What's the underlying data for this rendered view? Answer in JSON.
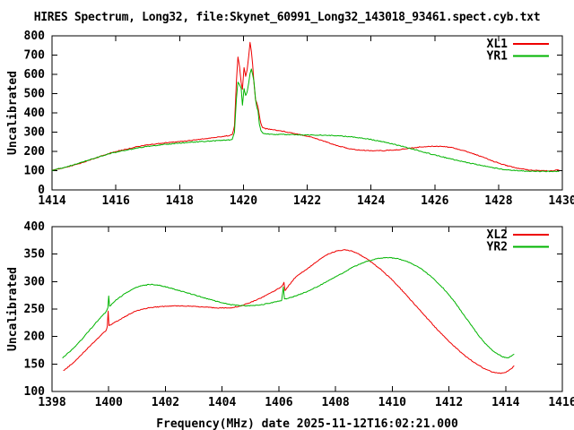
{
  "title": "HIRES Spectrum, Long32, file:Skynet_60991_Long32_143018_93461.spect.cyb.txt",
  "colors": {
    "background": "#ffffff",
    "foreground": "#000000",
    "red_series": "#ee0000",
    "green_series": "#00b400"
  },
  "chart_data": [
    {
      "type": "line",
      "plot_id": "top",
      "title": "",
      "xlabel": "",
      "ylabel": "Uncalibrated",
      "xlim": [
        1414,
        1430
      ],
      "ylim": [
        0,
        800
      ],
      "xticks": [
        1414,
        1416,
        1418,
        1420,
        1422,
        1424,
        1426,
        1428,
        1430
      ],
      "yticks": [
        0,
        100,
        200,
        300,
        400,
        500,
        600,
        700,
        800
      ],
      "grid": false,
      "legend_position": "top-right-inside",
      "series": [
        {
          "name": "XL1",
          "color": "#ee0000",
          "points": [
            [
              1414.0,
              101
            ],
            [
              1414.3,
              111
            ],
            [
              1414.6,
              124
            ],
            [
              1414.9,
              139
            ],
            [
              1415.2,
              156
            ],
            [
              1415.5,
              173
            ],
            [
              1415.8,
              190
            ],
            [
              1416.1,
              203
            ],
            [
              1416.4,
              214
            ],
            [
              1416.7,
              226
            ],
            [
              1417.0,
              234
            ],
            [
              1417.3,
              240
            ],
            [
              1417.6,
              245
            ],
            [
              1418.0,
              251
            ],
            [
              1418.4,
              258
            ],
            [
              1418.8,
              266
            ],
            [
              1419.2,
              274
            ],
            [
              1419.5,
              281
            ],
            [
              1419.65,
              286
            ],
            [
              1419.72,
              330
            ],
            [
              1419.78,
              565
            ],
            [
              1419.83,
              690
            ],
            [
              1419.88,
              638
            ],
            [
              1419.93,
              558
            ],
            [
              1419.97,
              522
            ],
            [
              1420.02,
              635
            ],
            [
              1420.07,
              590
            ],
            [
              1420.12,
              625
            ],
            [
              1420.17,
              700
            ],
            [
              1420.21,
              765
            ],
            [
              1420.25,
              718
            ],
            [
              1420.29,
              650
            ],
            [
              1420.33,
              558
            ],
            [
              1420.38,
              470
            ],
            [
              1420.42,
              452
            ],
            [
              1420.46,
              428
            ],
            [
              1420.5,
              385
            ],
            [
              1420.55,
              345
            ],
            [
              1420.6,
              325
            ],
            [
              1420.7,
              318
            ],
            [
              1420.85,
              315
            ],
            [
              1421.0,
              311
            ],
            [
              1421.4,
              300
            ],
            [
              1421.8,
              287
            ],
            [
              1422.2,
              271
            ],
            [
              1422.6,
              249
            ],
            [
              1423.0,
              227
            ],
            [
              1423.4,
              211
            ],
            [
              1423.7,
              206
            ],
            [
              1424.0,
              204
            ],
            [
              1424.4,
              204
            ],
            [
              1424.8,
              208
            ],
            [
              1425.2,
              216
            ],
            [
              1425.6,
              224
            ],
            [
              1426.0,
              227
            ],
            [
              1426.3,
              226
            ],
            [
              1426.6,
              218
            ],
            [
              1427.0,
              199
            ],
            [
              1427.4,
              177
            ],
            [
              1427.8,
              151
            ],
            [
              1428.2,
              129
            ],
            [
              1428.6,
              112
            ],
            [
              1429.0,
              103
            ],
            [
              1429.4,
              100
            ],
            [
              1429.7,
              99
            ],
            [
              1429.9,
              104
            ]
          ]
        },
        {
          "name": "YR1",
          "color": "#00b400",
          "points": [
            [
              1414.0,
              102
            ],
            [
              1414.3,
              113
            ],
            [
              1414.6,
              127
            ],
            [
              1414.9,
              142
            ],
            [
              1415.2,
              158
            ],
            [
              1415.5,
              174
            ],
            [
              1415.8,
              188
            ],
            [
              1416.1,
              199
            ],
            [
              1416.4,
              209
            ],
            [
              1416.7,
              218
            ],
            [
              1417.0,
              226
            ],
            [
              1417.3,
              232
            ],
            [
              1417.6,
              237
            ],
            [
              1418.0,
              243
            ],
            [
              1418.4,
              248
            ],
            [
              1418.8,
              252
            ],
            [
              1419.2,
              256
            ],
            [
              1419.5,
              259
            ],
            [
              1419.65,
              261
            ],
            [
              1419.72,
              300
            ],
            [
              1419.78,
              470
            ],
            [
              1419.83,
              560
            ],
            [
              1419.88,
              545
            ],
            [
              1419.93,
              528
            ],
            [
              1419.97,
              440
            ],
            [
              1420.02,
              525
            ],
            [
              1420.07,
              490
            ],
            [
              1420.12,
              510
            ],
            [
              1420.17,
              560
            ],
            [
              1420.21,
              605
            ],
            [
              1420.25,
              628
            ],
            [
              1420.29,
              600
            ],
            [
              1420.33,
              565
            ],
            [
              1420.38,
              470
            ],
            [
              1420.42,
              430
            ],
            [
              1420.46,
              408
            ],
            [
              1420.5,
              340
            ],
            [
              1420.55,
              310
            ],
            [
              1420.6,
              297
            ],
            [
              1420.7,
              291
            ],
            [
              1420.85,
              289
            ],
            [
              1421.0,
              288
            ],
            [
              1421.5,
              287
            ],
            [
              1422.0,
              285
            ],
            [
              1422.5,
              284
            ],
            [
              1423.0,
              281
            ],
            [
              1423.5,
              274
            ],
            [
              1424.0,
              262
            ],
            [
              1424.4,
              249
            ],
            [
              1424.8,
              234
            ],
            [
              1425.2,
              217
            ],
            [
              1425.6,
              199
            ],
            [
              1426.0,
              181
            ],
            [
              1426.5,
              161
            ],
            [
              1427.0,
              142
            ],
            [
              1427.4,
              129
            ],
            [
              1427.8,
              116
            ],
            [
              1428.2,
              105
            ],
            [
              1428.6,
              100
            ],
            [
              1429.0,
              97
            ],
            [
              1429.4,
              96
            ],
            [
              1429.9,
              97
            ]
          ]
        }
      ]
    },
    {
      "type": "line",
      "plot_id": "bottom",
      "title": "",
      "xlabel": "Frequency(MHz) date 2025-11-12T16:02:21.000",
      "ylabel": "Uncalibrated",
      "xlim": [
        1398,
        1416
      ],
      "ylim": [
        100,
        400
      ],
      "xticks": [
        1398,
        1400,
        1402,
        1404,
        1406,
        1408,
        1410,
        1412,
        1414,
        1416
      ],
      "yticks": [
        100,
        150,
        200,
        250,
        300,
        350,
        400
      ],
      "grid": false,
      "legend_position": "top-right-inside",
      "series": [
        {
          "name": "XL2",
          "color": "#ee0000",
          "points": [
            [
              1398.4,
              138
            ],
            [
              1398.7,
              150
            ],
            [
              1399.0,
              165
            ],
            [
              1399.3,
              181
            ],
            [
              1399.6,
              196
            ],
            [
              1399.9,
              211
            ],
            [
              1399.95,
              218
            ],
            [
              1399.98,
              247
            ],
            [
              1400.01,
              220
            ],
            [
              1400.3,
              228
            ],
            [
              1400.6,
              237
            ],
            [
              1400.9,
              245
            ],
            [
              1401.2,
              250
            ],
            [
              1401.5,
              253
            ],
            [
              1402.0,
              255
            ],
            [
              1402.5,
              256
            ],
            [
              1403.0,
              255
            ],
            [
              1403.5,
              253
            ],
            [
              1404.0,
              252
            ],
            [
              1404.3,
              252
            ],
            [
              1404.6,
              255
            ],
            [
              1405.0,
              262
            ],
            [
              1405.4,
              271
            ],
            [
              1405.8,
              282
            ],
            [
              1406.1,
              291
            ],
            [
              1406.18,
              298
            ],
            [
              1406.22,
              284
            ],
            [
              1406.6,
              309
            ],
            [
              1407.0,
              323
            ],
            [
              1407.4,
              339
            ],
            [
              1407.7,
              349
            ],
            [
              1408.0,
              355
            ],
            [
              1408.3,
              358
            ],
            [
              1408.6,
              355
            ],
            [
              1408.9,
              348
            ],
            [
              1409.2,
              338
            ],
            [
              1409.6,
              322
            ],
            [
              1410.0,
              303
            ],
            [
              1410.4,
              281
            ],
            [
              1410.8,
              258
            ],
            [
              1411.2,
              235
            ],
            [
              1411.6,
              212
            ],
            [
              1412.0,
              191
            ],
            [
              1412.4,
              172
            ],
            [
              1412.8,
              156
            ],
            [
              1413.2,
              143
            ],
            [
              1413.5,
              136
            ],
            [
              1413.8,
              133
            ],
            [
              1414.0,
              135
            ],
            [
              1414.2,
              141
            ],
            [
              1414.3,
              147
            ]
          ]
        },
        {
          "name": "YR2",
          "color": "#00b400",
          "points": [
            [
              1398.37,
              161
            ],
            [
              1398.7,
              176
            ],
            [
              1399.0,
              192
            ],
            [
              1399.3,
              210
            ],
            [
              1399.6,
              228
            ],
            [
              1399.9,
              245
            ],
            [
              1399.97,
              252
            ],
            [
              1400.0,
              274
            ],
            [
              1400.03,
              255
            ],
            [
              1400.3,
              268
            ],
            [
              1400.6,
              279
            ],
            [
              1400.9,
              288
            ],
            [
              1401.2,
              293
            ],
            [
              1401.5,
              295
            ],
            [
              1401.8,
              293
            ],
            [
              1402.2,
              288
            ],
            [
              1402.6,
              282
            ],
            [
              1403.0,
              276
            ],
            [
              1403.4,
              270
            ],
            [
              1403.8,
              264
            ],
            [
              1404.2,
              259
            ],
            [
              1404.6,
              256
            ],
            [
              1405.0,
              256
            ],
            [
              1405.4,
              258
            ],
            [
              1405.8,
              262
            ],
            [
              1406.1,
              266
            ],
            [
              1406.16,
              291
            ],
            [
              1406.2,
              268
            ],
            [
              1406.6,
              274
            ],
            [
              1407.0,
              282
            ],
            [
              1407.4,
              292
            ],
            [
              1407.8,
              303
            ],
            [
              1408.2,
              314
            ],
            [
              1408.6,
              326
            ],
            [
              1409.0,
              335
            ],
            [
              1409.4,
              341
            ],
            [
              1409.8,
              344
            ],
            [
              1410.2,
              342
            ],
            [
              1410.6,
              335
            ],
            [
              1411.0,
              324
            ],
            [
              1411.4,
              308
            ],
            [
              1411.8,
              288
            ],
            [
              1412.2,
              263
            ],
            [
              1412.6,
              234
            ],
            [
              1413.0,
              205
            ],
            [
              1413.3,
              186
            ],
            [
              1413.6,
              172
            ],
            [
              1413.9,
              163
            ],
            [
              1414.1,
              161
            ],
            [
              1414.3,
              168
            ]
          ]
        }
      ]
    }
  ]
}
